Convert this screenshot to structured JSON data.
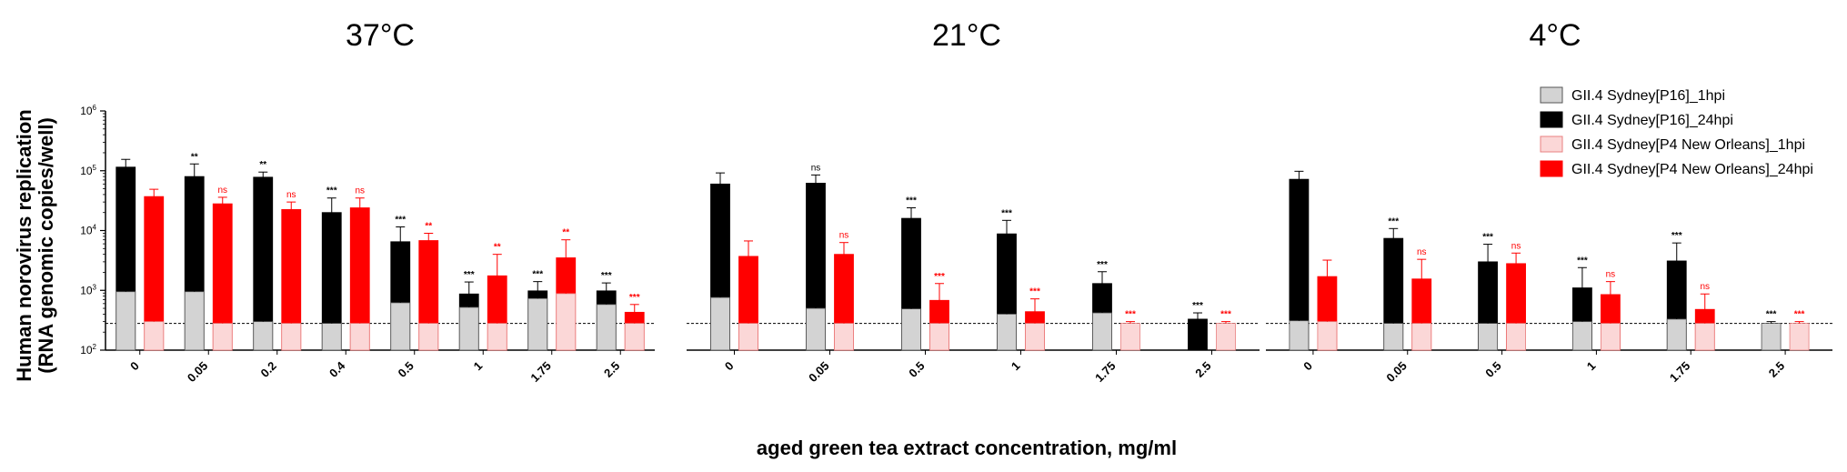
{
  "chart_data": {
    "type": "bar",
    "ylabel_line1": "Human norovirus replication",
    "ylabel_line2": "(RNA genomic copies/well)",
    "xlabel": "aged green tea extract concentration, mg/ml",
    "yscale": "log",
    "ylim": [
      100,
      1000000
    ],
    "yticks": [
      {
        "base": "10",
        "exp": "2"
      },
      {
        "base": "10",
        "exp": "3"
      },
      {
        "base": "10",
        "exp": "4"
      },
      {
        "base": "10",
        "exp": "5"
      },
      {
        "base": "10",
        "exp": "6"
      }
    ],
    "baseline_value": 280,
    "legend_position": "top-right",
    "series": [
      {
        "name": "GII.4 Sydney[P16]_1hpi",
        "color": "#d3d3d3",
        "stroke": "#555555"
      },
      {
        "name": "GII.4 Sydney[P16]_24hpi",
        "color": "#000000",
        "stroke": "#000000"
      },
      {
        "name": "GII.4 Sydney[P4 New Orleans]_1hpi",
        "color": "#fbd7d7",
        "stroke": "#e88080"
      },
      {
        "name": "GII.4 Sydney[P4 New Orleans]_24hpi",
        "color": "#ff0000",
        "stroke": "#ff0000"
      }
    ],
    "panels": [
      {
        "title": "37°C",
        "categories": [
          "0",
          "0.05",
          "0.2",
          "0.4",
          "0.5",
          "1",
          "1.75",
          "2.5"
        ],
        "s16_1hpi": [
          950,
          950,
          300,
          280,
          620,
          520,
          730,
          580
        ],
        "s16_1hpi_err": [
          1250,
          1200,
          360,
          300,
          790,
          690,
          900,
          720
        ],
        "s16_24hpi": [
          115000,
          80000,
          78000,
          20000,
          6500,
          870,
          980,
          980
        ],
        "s16_24hpi_err": [
          155000,
          130000,
          95000,
          35000,
          11500,
          1380,
          1400,
          1330
        ],
        "s16_sig": [
          "",
          "**",
          "**",
          "***",
          "***",
          "***",
          "***",
          "***"
        ],
        "p4_1hpi": [
          300,
          280,
          280,
          280,
          280,
          280,
          880,
          280
        ],
        "p4_1hpi_err": [
          330,
          300,
          300,
          300,
          300,
          300,
          1700,
          300
        ],
        "p4_24hpi": [
          37000,
          28000,
          22500,
          24000,
          6800,
          1750,
          3500,
          430
        ],
        "p4_24hpi_err": [
          49000,
          36000,
          30000,
          35000,
          9000,
          4000,
          7000,
          580
        ],
        "p4_sig": [
          "",
          "ns",
          "ns",
          "ns",
          "**",
          "**",
          "**",
          "***"
        ]
      },
      {
        "title": "21°C",
        "categories": [
          "0",
          "0.05",
          "0.5",
          "1",
          "1.75",
          "2.5"
        ],
        "s16_1hpi": [
          760,
          500,
          490,
          400,
          420,
          0
        ],
        "s16_1hpi_err": [
          1050,
          730,
          820,
          560,
          620,
          0
        ],
        "s16_24hpi": [
          60000,
          62000,
          16000,
          8800,
          1300,
          330
        ],
        "s16_24hpi_err": [
          92000,
          85000,
          24000,
          14800,
          2050,
          420
        ],
        "s16_sig": [
          "",
          "ns",
          "***",
          "***",
          "***",
          "***"
        ],
        "p4_1hpi": [
          280,
          280,
          280,
          280,
          280,
          280
        ],
        "p4_1hpi_err": [
          300,
          300,
          300,
          300,
          300,
          300
        ],
        "p4_24hpi": [
          3700,
          4000,
          680,
          440,
          0,
          0
        ],
        "p4_24hpi_err": [
          6700,
          6300,
          1300,
          720,
          0,
          0
        ],
        "p4_sig": [
          "",
          "ns",
          "***",
          "***",
          "***",
          "***"
        ]
      },
      {
        "title": "4°C",
        "categories": [
          "0",
          "0.05",
          "0.5",
          "1",
          "1.75",
          "2.5"
        ],
        "s16_1hpi": [
          310,
          280,
          280,
          300,
          330,
          280
        ],
        "s16_1hpi_err": [
          380,
          300,
          300,
          370,
          500,
          300
        ],
        "s16_24hpi": [
          72000,
          7400,
          3000,
          1100,
          3100,
          0
        ],
        "s16_24hpi_err": [
          98000,
          10800,
          5900,
          2400,
          6200,
          0
        ],
        "s16_sig": [
          "",
          "***",
          "***",
          "***",
          "***",
          "***"
        ],
        "p4_1hpi": [
          300,
          280,
          280,
          280,
          280,
          280
        ],
        "p4_1hpi_err": [
          360,
          300,
          300,
          300,
          300,
          300
        ],
        "p4_24hpi": [
          1700,
          1550,
          2800,
          850,
          480,
          0
        ],
        "p4_24hpi_err": [
          3200,
          3300,
          4200,
          1400,
          870,
          0
        ],
        "p4_sig": [
          "",
          "ns",
          "ns",
          "ns",
          "ns",
          "***"
        ]
      }
    ]
  }
}
